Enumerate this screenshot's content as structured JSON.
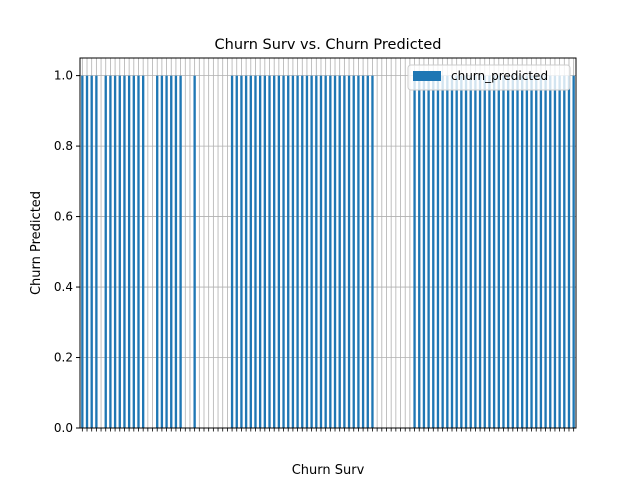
{
  "chart_data": {
    "type": "bar",
    "title": "Churn Surv vs. Churn Predicted",
    "xlabel": "Churn Surv",
    "ylabel": "Churn Predicted",
    "ylim": [
      0,
      1.05
    ],
    "yticks": [
      "0.0",
      "0.2",
      "0.4",
      "0.6",
      "0.8",
      "1.0"
    ],
    "grid": true,
    "legend_position": "top-right",
    "series": [
      {
        "name": "churn_predicted",
        "color": "#1f77b4",
        "values": [
          1,
          1,
          1,
          1,
          0,
          1,
          1,
          1,
          1,
          1,
          1,
          1,
          1,
          1,
          0,
          0,
          1,
          1,
          1,
          1,
          1,
          1,
          0,
          0,
          1,
          0,
          0,
          0,
          0,
          0,
          0,
          0,
          1,
          1,
          1,
          1,
          1,
          1,
          1,
          1,
          1,
          1,
          1,
          1,
          1,
          1,
          1,
          1,
          1,
          1,
          1,
          1,
          1,
          1,
          1,
          1,
          1,
          1,
          1,
          1,
          1,
          1,
          1,
          0,
          0,
          0,
          0,
          0,
          0,
          0,
          0,
          1,
          1,
          1,
          1,
          1,
          1,
          1,
          1,
          1,
          1,
          1,
          1,
          1,
          1,
          1,
          1,
          1,
          1,
          1,
          1,
          1,
          1,
          1,
          1,
          1,
          1,
          1,
          1,
          1,
          1,
          1,
          1,
          1,
          1,
          1
        ]
      }
    ]
  }
}
